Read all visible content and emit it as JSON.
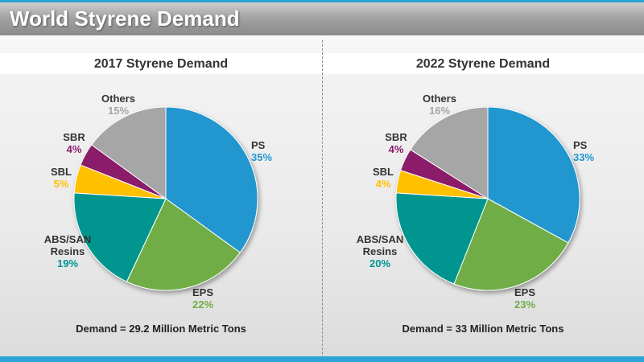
{
  "slide": {
    "title": "World Styrene Demand"
  },
  "colors": {
    "PS": "#2196cf",
    "EPS": "#70ad47",
    "ABS/SAN Resins": "#00958f",
    "SBL": "#ffc000",
    "SBR": "#8b1a6b",
    "Others": "#a6a6a6",
    "name_text": "#333333"
  },
  "chart_data": [
    {
      "type": "pie",
      "title": "2017 Styrene Demand",
      "footer": "Demand = 29.2 Million Metric Tons",
      "slices": [
        {
          "name": "PS",
          "value": 35,
          "label": "35%"
        },
        {
          "name": "EPS",
          "value": 22,
          "label": "22%"
        },
        {
          "name": "ABS/SAN Resins",
          "value": 19,
          "label": "19%"
        },
        {
          "name": "SBL",
          "value": 5,
          "label": "5%"
        },
        {
          "name": "SBR",
          "value": 4,
          "label": "4%"
        },
        {
          "name": "Others",
          "value": 15,
          "label": "15%"
        }
      ]
    },
    {
      "type": "pie",
      "title": "2022 Styrene Demand",
      "footer": "Demand = 33 Million Metric Tons",
      "slices": [
        {
          "name": "PS",
          "value": 33,
          "label": "33%"
        },
        {
          "name": "EPS",
          "value": 23,
          "label": "23%"
        },
        {
          "name": "ABS/SAN Resins",
          "value": 20,
          "label": "20%"
        },
        {
          "name": "SBL",
          "value": 4,
          "label": "4%"
        },
        {
          "name": "SBR",
          "value": 4,
          "label": "4%"
        },
        {
          "name": "Others",
          "value": 16,
          "label": "16%"
        }
      ]
    }
  ]
}
